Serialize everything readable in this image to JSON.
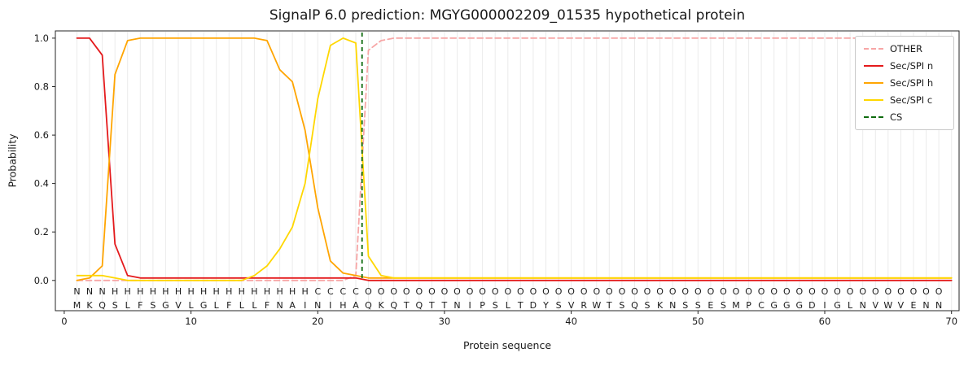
{
  "chart_data": {
    "type": "line",
    "title": "SignalP 6.0 prediction: MGYG000002209_01535 hypothetical protein",
    "xlabel": "Protein sequence",
    "ylabel": "Probability",
    "xlim": [
      -0.7,
      70.6
    ],
    "ylim": [
      -0.125,
      1.03
    ],
    "xticks": [
      0,
      10,
      20,
      30,
      40,
      50,
      60,
      70
    ],
    "yticks": [
      0,
      0.2,
      0.4,
      0.6,
      0.8,
      1.0
    ],
    "ytick_labels": [
      "0.0",
      "0.2",
      "0.4",
      "0.6",
      "0.8",
      "1.0"
    ],
    "grid": "vertical light gray line at each residue position",
    "legend_position": "upper right",
    "series": [
      {
        "name": "OTHER",
        "color": "#f7a6a6",
        "dash": true,
        "values": [
          0,
          0,
          0,
          0,
          0,
          0,
          0,
          0,
          0,
          0,
          0,
          0,
          0,
          0,
          0,
          0,
          0,
          0,
          0,
          0,
          0,
          0,
          0.02,
          0.95,
          0.99,
          1,
          1,
          1,
          1,
          1,
          1,
          1,
          1,
          1,
          1,
          1,
          1,
          1,
          1,
          1,
          1,
          1,
          1,
          1,
          1,
          1,
          1,
          1,
          1,
          1,
          1,
          1,
          1,
          1,
          1,
          1,
          1,
          1,
          1,
          1,
          1,
          1,
          1,
          1,
          1,
          1,
          1,
          1,
          1,
          1
        ]
      },
      {
        "name": "Sec/SPI n",
        "color": "#e41a1c",
        "dash": false,
        "values": [
          1,
          1,
          0.93,
          0.15,
          0.02,
          0.01,
          0.01,
          0.01,
          0.01,
          0.01,
          0.01,
          0.01,
          0.01,
          0.01,
          0.01,
          0.01,
          0.01,
          0.01,
          0.01,
          0.01,
          0.01,
          0.01,
          0.01,
          0,
          0,
          0,
          0,
          0,
          0,
          0,
          0,
          0,
          0,
          0,
          0,
          0,
          0,
          0,
          0,
          0,
          0,
          0,
          0,
          0,
          0,
          0,
          0,
          0,
          0,
          0,
          0,
          0,
          0,
          0,
          0,
          0,
          0,
          0,
          0,
          0,
          0,
          0,
          0,
          0,
          0,
          0,
          0,
          0,
          0,
          0
        ]
      },
      {
        "name": "Sec/SPI h",
        "color": "#ffa502",
        "dash": false,
        "values": [
          0,
          0.01,
          0.06,
          0.85,
          0.99,
          1,
          1,
          1,
          1,
          1,
          1,
          1,
          1,
          1,
          1,
          0.99,
          0.87,
          0.82,
          0.62,
          0.3,
          0.08,
          0.03,
          0.02,
          0.01,
          0.01,
          0.01,
          0.01,
          0.01,
          0.01,
          0.01,
          0.01,
          0.01,
          0.01,
          0.01,
          0.01,
          0.01,
          0.01,
          0.01,
          0.01,
          0.01,
          0.01,
          0.01,
          0.01,
          0.01,
          0.01,
          0.01,
          0.01,
          0.01,
          0.01,
          0.01,
          0.01,
          0.01,
          0.01,
          0.01,
          0.01,
          0.01,
          0.01,
          0.01,
          0.01,
          0.01,
          0.01,
          0.01,
          0.01,
          0.01,
          0.01,
          0.01,
          0.01,
          0.01,
          0.01,
          0.01
        ]
      },
      {
        "name": "Sec/SPI c",
        "color": "#ffd700",
        "dash": false,
        "values": [
          0.02,
          0.02,
          0.02,
          0.01,
          0,
          0,
          0,
          0,
          0,
          0,
          0,
          0,
          0,
          0,
          0.02,
          0.06,
          0.13,
          0.22,
          0.4,
          0.75,
          0.97,
          1,
          0.98,
          0.1,
          0.02,
          0.01,
          0.01,
          0.01,
          0.01,
          0.01,
          0.01,
          0.01,
          0.01,
          0.01,
          0.01,
          0.01,
          0.01,
          0.01,
          0.01,
          0.01,
          0.01,
          0.01,
          0.01,
          0.01,
          0.01,
          0.01,
          0.01,
          0.01,
          0.01,
          0.01,
          0.01,
          0.01,
          0.01,
          0.01,
          0.01,
          0.01,
          0.01,
          0.01,
          0.01,
          0.01,
          0.01,
          0.01,
          0.01,
          0.01,
          0.01,
          0.01,
          0.01,
          0.01,
          0.01,
          0.01
        ]
      }
    ],
    "cs_line": {
      "name": "CS",
      "x": 23.5,
      "color": "#0e6b0e",
      "dash": true
    },
    "legend": [
      {
        "name": "OTHER",
        "color": "#f7a6a6",
        "dash": true
      },
      {
        "name": "Sec/SPI n",
        "color": "#e41a1c",
        "dash": false
      },
      {
        "name": "Sec/SPI h",
        "color": "#ffa502",
        "dash": false
      },
      {
        "name": "Sec/SPI c",
        "color": "#ffd700",
        "dash": false
      },
      {
        "name": "CS",
        "color": "#0e6b0e",
        "dash": true
      }
    ],
    "sequence": {
      "residues": "MKQSLFSGVLGLFLLFNAINIHAQKQTQTTNIPSLTDYSVRWTSQSKNSSESMPCGGGDIGLNVWVENND",
      "region_labels": "NNNHHHHHHHHHHHHHHHHCCCCOOOOOOOOOOOOOOOOOOOOOOOOOOOOOOOOOOOOOOOOOOOOOO",
      "region_colors": {
        "N": "#e41a1c",
        "H": "#ffa502",
        "C": "#ffd700",
        "O": "#8c8c8c"
      }
    }
  }
}
